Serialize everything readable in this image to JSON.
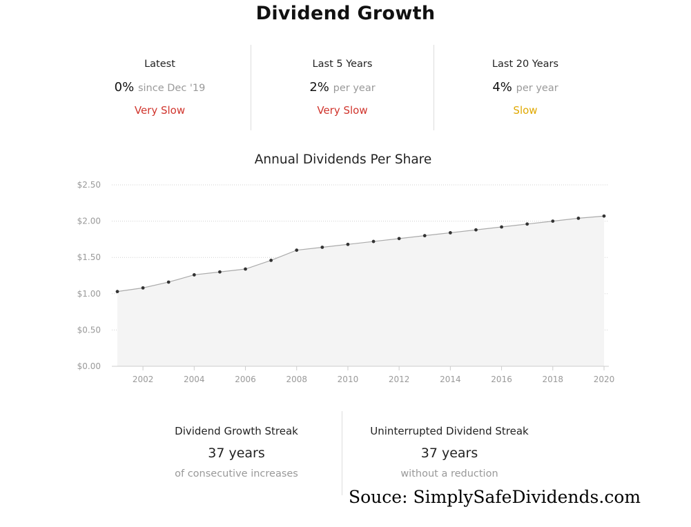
{
  "title": "Dividend Growth",
  "stats": [
    {
      "label": "Latest",
      "value": "0%",
      "unit": "since Dec '19",
      "rating": "Very Slow",
      "rating_color": "#d0342c"
    },
    {
      "label": "Last 5 Years",
      "value": "2%",
      "unit": "per year",
      "rating": "Very Slow",
      "rating_color": "#d0342c"
    },
    {
      "label": "Last 20 Years",
      "value": "4%",
      "unit": "per year",
      "rating": "Slow",
      "rating_color": "#e0a800"
    }
  ],
  "chart_data": {
    "type": "area",
    "title": "Annual Dividends Per Share",
    "xlabel": "",
    "ylabel": "",
    "x": [
      2001,
      2002,
      2003,
      2004,
      2005,
      2006,
      2007,
      2008,
      2009,
      2010,
      2011,
      2012,
      2013,
      2014,
      2015,
      2016,
      2017,
      2018,
      2019,
      2020
    ],
    "values": [
      1.03,
      1.08,
      1.16,
      1.26,
      1.3,
      1.34,
      1.46,
      1.6,
      1.64,
      1.68,
      1.72,
      1.76,
      1.8,
      1.84,
      1.88,
      1.92,
      1.96,
      2.0,
      2.04,
      2.07
    ],
    "xlim": [
      2001,
      2020
    ],
    "ylim": [
      0,
      2.5
    ],
    "x_ticks": [
      2002,
      2004,
      2006,
      2008,
      2010,
      2012,
      2014,
      2016,
      2018,
      2020
    ],
    "y_ticks": [
      0,
      0.5,
      1.0,
      1.5,
      2.0,
      2.5
    ],
    "y_tick_labels": [
      "$0.00",
      "$0.50",
      "$1.00",
      "$1.50",
      "$2.00",
      "$2.50"
    ],
    "grid": true,
    "legend": "none",
    "fill_color": "#f4f4f4",
    "line_color": "#aaaaaa",
    "point_color": "#333333"
  },
  "streaks": [
    {
      "label": "Dividend Growth Streak",
      "value": "37 years",
      "note": "of consecutive increases"
    },
    {
      "label": "Uninterrupted Dividend Streak",
      "value": "37 years",
      "note": "without a reduction"
    }
  ],
  "source": "Souce: SimplySafeDividends.com"
}
